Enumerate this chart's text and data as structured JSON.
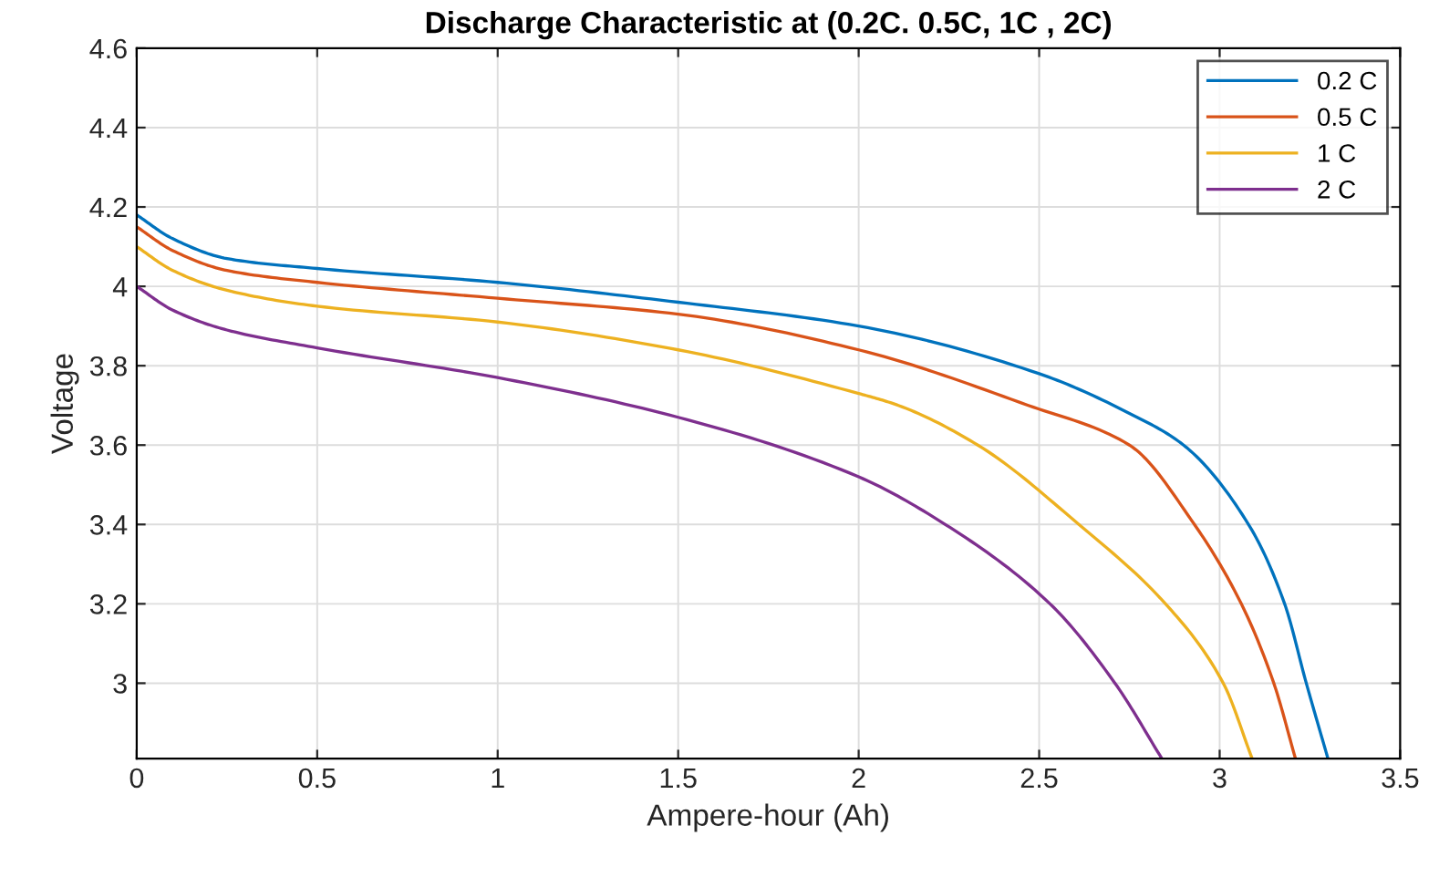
{
  "chart_data": {
    "type": "line",
    "title": "Discharge Characteristic at (0.2C. 0.5C, 1C , 2C)",
    "xlabel": "Ampere-hour (Ah)",
    "ylabel": "Voltage",
    "xlim": [
      0,
      3.5
    ],
    "ylim": [
      2.81,
      4.6
    ],
    "xticks": [
      0,
      0.5,
      1,
      1.5,
      2,
      2.5,
      3,
      3.5
    ],
    "yticks": [
      3,
      3.2,
      3.4,
      3.6,
      3.8,
      4,
      4.2,
      4.4,
      4.6
    ],
    "grid": true,
    "legend": "top right",
    "line_style": "solid",
    "marker": "none",
    "series": [
      {
        "name": "0.2 C",
        "color": "#0072bd",
        "x": [
          0,
          0.1,
          0.25,
          0.5,
          1,
          1.5,
          2,
          2.5,
          2.75,
          2.9,
          3.08,
          3.18,
          3.24,
          3.3
        ],
        "values": [
          4.18,
          4.12,
          4.07,
          4.045,
          4.01,
          3.96,
          3.9,
          3.78,
          3.68,
          3.6,
          3.4,
          3.2,
          3.0,
          2.81
        ]
      },
      {
        "name": "0.5 C",
        "color": "#d95319",
        "x": [
          0,
          0.1,
          0.25,
          0.5,
          1,
          1.5,
          2,
          2.47,
          2.75,
          2.93,
          3.06,
          3.15,
          3.21
        ],
        "values": [
          4.15,
          4.09,
          4.04,
          4.01,
          3.97,
          3.93,
          3.84,
          3.7,
          3.6,
          3.4,
          3.2,
          3.0,
          2.81
        ]
      },
      {
        "name": "1 C",
        "color": "#edb120",
        "x": [
          0,
          0.1,
          0.25,
          0.5,
          1,
          1.5,
          2,
          2.11,
          2.33,
          2.61,
          2.85,
          3.01,
          3.09
        ],
        "values": [
          4.1,
          4.04,
          3.99,
          3.95,
          3.91,
          3.84,
          3.73,
          3.7,
          3.6,
          3.4,
          3.2,
          3.0,
          2.81
        ]
      },
      {
        "name": "2 C",
        "color": "#7e2f8e",
        "x": [
          0,
          0.1,
          0.25,
          0.5,
          1,
          1.5,
          2,
          2.24,
          2.53,
          2.71,
          2.84
        ],
        "values": [
          4.0,
          3.94,
          3.89,
          3.845,
          3.77,
          3.67,
          3.52,
          3.4,
          3.2,
          3.0,
          2.81
        ]
      }
    ]
  }
}
